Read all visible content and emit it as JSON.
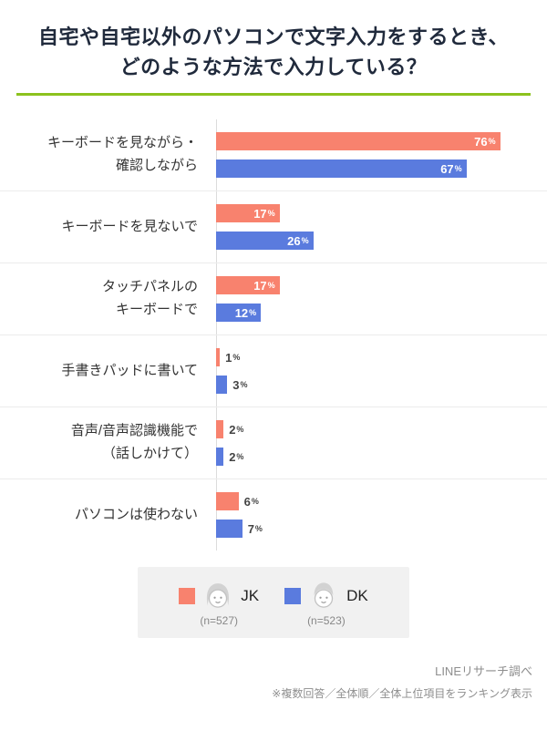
{
  "title": "自宅や自宅以外のパソコンで文字入力をするとき、\nどのような方法で入力している？",
  "colors": {
    "jk": "#f8826e",
    "dk": "#5a7bde",
    "accent": "#8cc21e",
    "legend_bg": "#f1f1f1"
  },
  "chart_data": {
    "type": "bar",
    "orientation": "horizontal",
    "title": "自宅や自宅以外のパソコンで文字入力をするとき、どのような方法で入力している？",
    "unit": "%",
    "categories": [
      "キーボードを見ながら・確認しながら",
      "キーボードを見ないで",
      "タッチパネルのキーボードで",
      "手書きパッドに書いて",
      "音声/音声認識機能で（話しかけて）",
      "パソコンは使わない"
    ],
    "series": [
      {
        "name": "JK",
        "n_label": "(n=527)",
        "values": [
          76,
          17,
          17,
          1,
          2,
          6
        ]
      },
      {
        "name": "DK",
        "n_label": "(n=523)",
        "values": [
          67,
          26,
          12,
          3,
          2,
          7
        ]
      }
    ],
    "xlim": [
      0,
      80
    ],
    "grid": false,
    "legend_position": "bottom"
  },
  "rows": [
    {
      "label": "キーボードを見ながら・\n確認しながら"
    },
    {
      "label": "キーボードを見ないで"
    },
    {
      "label": "タッチパネルの\nキーボードで"
    },
    {
      "label": "手書きパッドに書いて"
    },
    {
      "label": "音声/音声認識機能で\n（話しかけて）"
    },
    {
      "label": "パソコンは使わない"
    }
  ],
  "legend": {
    "jk": {
      "label": "JK",
      "n": "(n=527)"
    },
    "dk": {
      "label": "DK",
      "n": "(n=523)"
    }
  },
  "footer": {
    "source": "LINEリサーチ調べ",
    "note": "※複数回答／全体順／全体上位項目をランキング表示"
  }
}
